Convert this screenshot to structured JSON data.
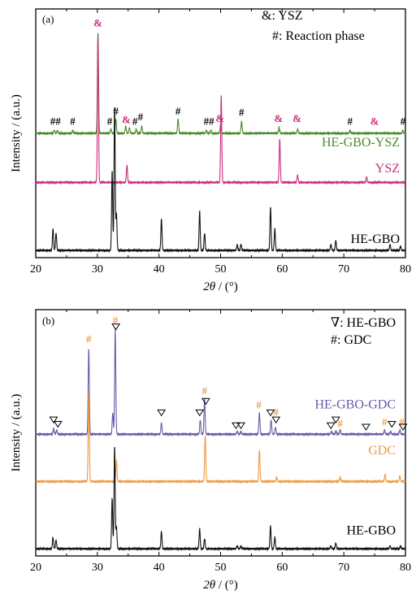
{
  "chart_data": [
    {
      "panel": "(a)",
      "type": "line",
      "xlabel_italic": "2θ",
      "xlabel_rest": " / (°)",
      "ylabel": "Intensity / (a.u.)",
      "xlim": [
        20,
        80
      ],
      "xticks": [
        "20",
        "30",
        "40",
        "50",
        "60",
        "70",
        "80"
      ],
      "legend": [
        {
          "symbol": "&",
          "text": ": YSZ"
        },
        {
          "symbol": "#",
          "text": ": Reaction phase"
        }
      ],
      "series": [
        {
          "name": "HE-GBO-YSZ",
          "color": "#4a8c2a",
          "baseline": 0.86,
          "peaks": [
            [
              23.0,
              0.02
            ],
            [
              23.5,
              0.02
            ],
            [
              26.0,
              0.02
            ],
            [
              30.1,
              0.7
            ],
            [
              32.2,
              0.03
            ],
            [
              33.0,
              0.1
            ],
            [
              34.6,
              0.05
            ],
            [
              35.2,
              0.04
            ],
            [
              36.3,
              0.03
            ],
            [
              37.2,
              0.05
            ],
            [
              43.1,
              0.1
            ],
            [
              47.7,
              0.02
            ],
            [
              48.4,
              0.02
            ],
            [
              50.0,
              0.06
            ],
            [
              53.4,
              0.08
            ],
            [
              59.5,
              0.04
            ],
            [
              62.5,
              0.03
            ],
            [
              71.0,
              0.02
            ],
            [
              79.6,
              0.02
            ]
          ]
        },
        {
          "name": "YSZ",
          "color": "#cc2d7c",
          "baseline": 0.52,
          "peaks": [
            [
              30.1,
              1.0
            ],
            [
              34.8,
              0.12
            ],
            [
              50.1,
              0.6
            ],
            [
              59.6,
              0.3
            ],
            [
              62.5,
              0.05
            ],
            [
              73.7,
              0.04
            ]
          ]
        },
        {
          "name": "HE-GBO",
          "color": "#111111",
          "baseline": 0.05,
          "peaks": [
            [
              22.8,
              0.15
            ],
            [
              23.3,
              0.12
            ],
            [
              32.4,
              0.55
            ],
            [
              32.8,
              1.0
            ],
            [
              33.1,
              0.25
            ],
            [
              40.4,
              0.22
            ],
            [
              46.6,
              0.27
            ],
            [
              47.4,
              0.12
            ],
            [
              52.7,
              0.04
            ],
            [
              53.3,
              0.04
            ],
            [
              58.1,
              0.3
            ],
            [
              58.8,
              0.15
            ],
            [
              67.9,
              0.04
            ],
            [
              68.7,
              0.07
            ],
            [
              77.5,
              0.04
            ],
            [
              79.2,
              0.03
            ]
          ]
        }
      ],
      "markers": [
        {
          "x": 23.2,
          "y": 0.92,
          "text": "##",
          "color": "#000000"
        },
        {
          "x": 26.0,
          "y": 0.92,
          "text": "#",
          "color": "#000000"
        },
        {
          "x": 30.1,
          "y": 1.6,
          "text": "&",
          "color": "#cc2d7c"
        },
        {
          "x": 32.0,
          "y": 0.92,
          "text": "#",
          "color": "#000000"
        },
        {
          "x": 33.0,
          "y": 0.99,
          "text": "#",
          "color": "#000000"
        },
        {
          "x": 34.7,
          "y": 0.93,
          "text": "&",
          "color": "#cc2d7c"
        },
        {
          "x": 36.1,
          "y": 0.92,
          "text": "#",
          "color": "#000000"
        },
        {
          "x": 37.0,
          "y": 0.95,
          "text": "#",
          "color": "#000000"
        },
        {
          "x": 43.1,
          "y": 0.99,
          "text": "#",
          "color": "#000000"
        },
        {
          "x": 48.1,
          "y": 0.92,
          "text": "##",
          "color": "#000000"
        },
        {
          "x": 49.9,
          "y": 0.94,
          "text": "&",
          "color": "#cc2d7c"
        },
        {
          "x": 53.4,
          "y": 0.98,
          "text": "#",
          "color": "#000000"
        },
        {
          "x": 59.4,
          "y": 0.94,
          "text": "&",
          "color": "#cc2d7c"
        },
        {
          "x": 62.4,
          "y": 0.94,
          "text": "&",
          "color": "#cc2d7c"
        },
        {
          "x": 71.0,
          "y": 0.92,
          "text": "#",
          "color": "#000000"
        },
        {
          "x": 75.0,
          "y": 0.92,
          "text": "&",
          "color": "#cc2d7c"
        },
        {
          "x": 79.6,
          "y": 0.92,
          "text": "#",
          "color": "#000000"
        }
      ]
    },
    {
      "panel": "(b)",
      "type": "line",
      "xlabel_italic": "2θ",
      "xlabel_rest": " / (°)",
      "ylabel": "Intensity / (a.u.)",
      "xlim": [
        20,
        80
      ],
      "xticks": [
        "20",
        "30",
        "40",
        "50",
        "60",
        "70",
        "80"
      ],
      "legend": [
        {
          "symbol": "∇",
          "text": ": HE-GBO"
        },
        {
          "symbol": "#",
          "text": ": GDC"
        }
      ],
      "series": [
        {
          "name": "HE-GBO-GDC",
          "color": "#6a5aa8",
          "baseline": 0.85,
          "peaks": [
            [
              22.9,
              0.04
            ],
            [
              23.4,
              0.03
            ],
            [
              28.6,
              0.6
            ],
            [
              32.5,
              0.15
            ],
            [
              32.9,
              0.73
            ],
            [
              40.4,
              0.08
            ],
            [
              46.7,
              0.1
            ],
            [
              47.4,
              0.25
            ],
            [
              52.7,
              0.02
            ],
            [
              53.3,
              0.02
            ],
            [
              56.3,
              0.15
            ],
            [
              58.2,
              0.1
            ],
            [
              58.9,
              0.05
            ],
            [
              68.0,
              0.02
            ],
            [
              68.7,
              0.02
            ],
            [
              69.4,
              0.03
            ],
            [
              76.6,
              0.03
            ],
            [
              77.6,
              0.02
            ],
            [
              79.1,
              0.03
            ]
          ]
        },
        {
          "name": "GDC",
          "color": "#ef9a3f",
          "baseline": 0.52,
          "peaks": [
            [
              28.6,
              0.62
            ],
            [
              33.1,
              0.15
            ],
            [
              47.5,
              0.32
            ],
            [
              56.3,
              0.22
            ],
            [
              59.1,
              0.03
            ],
            [
              69.4,
              0.03
            ],
            [
              76.7,
              0.05
            ],
            [
              79.1,
              0.04
            ]
          ]
        },
        {
          "name": "HE-GBO",
          "color": "#111111",
          "baseline": 0.05,
          "peaks": [
            [
              22.8,
              0.08
            ],
            [
              23.3,
              0.06
            ],
            [
              32.4,
              0.35
            ],
            [
              32.8,
              0.72
            ],
            [
              33.1,
              0.15
            ],
            [
              40.4,
              0.12
            ],
            [
              46.6,
              0.14
            ],
            [
              47.4,
              0.07
            ],
            [
              52.7,
              0.02
            ],
            [
              53.3,
              0.02
            ],
            [
              58.1,
              0.16
            ],
            [
              58.8,
              0.08
            ],
            [
              67.9,
              0.02
            ],
            [
              68.7,
              0.04
            ],
            [
              77.5,
              0.02
            ],
            [
              79.2,
              0.02
            ]
          ]
        }
      ],
      "markers": [
        {
          "x": 28.6,
          "y": 1.49,
          "text": "#",
          "color": "#ef9a3f"
        },
        {
          "x": 32.9,
          "y": 1.62,
          "text": "#",
          "color": "#ef9a3f"
        },
        {
          "x": 47.4,
          "y": 1.13,
          "text": "#",
          "color": "#ef9a3f"
        },
        {
          "x": 56.2,
          "y": 1.03,
          "text": "#",
          "color": "#ef9a3f"
        },
        {
          "x": 59.0,
          "y": 0.98,
          "text": "#",
          "color": "#ef9a3f"
        },
        {
          "x": 69.4,
          "y": 0.9,
          "text": "#",
          "color": "#ef9a3f"
        },
        {
          "x": 76.6,
          "y": 0.91,
          "text": "#",
          "color": "#ef9a3f"
        },
        {
          "x": 79.4,
          "y": 0.91,
          "text": "#",
          "color": "#ef9a3f"
        }
      ],
      "triangles": [
        {
          "x": 33.0,
          "y": 1.58
        },
        {
          "x": 22.9,
          "y": 0.93
        },
        {
          "x": 23.6,
          "y": 0.9
        },
        {
          "x": 40.4,
          "y": 0.98
        },
        {
          "x": 46.6,
          "y": 0.98
        },
        {
          "x": 47.6,
          "y": 1.06
        },
        {
          "x": 52.5,
          "y": 0.89
        },
        {
          "x": 53.3,
          "y": 0.89
        },
        {
          "x": 58.1,
          "y": 0.98
        },
        {
          "x": 59.0,
          "y": 0.93
        },
        {
          "x": 67.9,
          "y": 0.89
        },
        {
          "x": 68.7,
          "y": 0.93
        },
        {
          "x": 73.6,
          "y": 0.88
        },
        {
          "x": 77.8,
          "y": 0.9
        },
        {
          "x": 79.6,
          "y": 0.88
        }
      ]
    }
  ]
}
